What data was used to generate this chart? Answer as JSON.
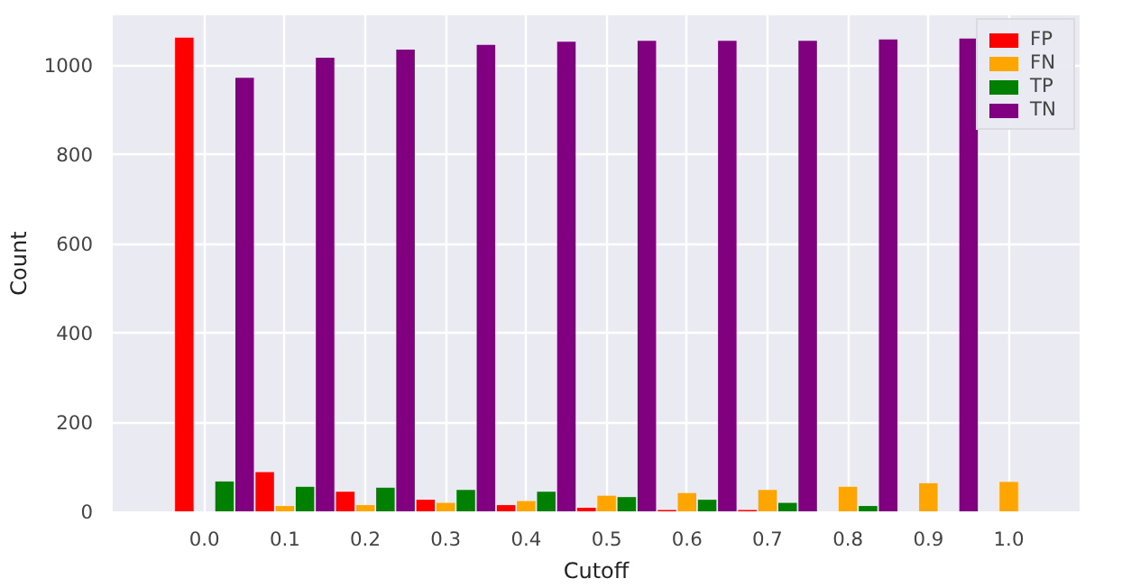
{
  "chart_data": {
    "type": "bar",
    "xlabel": "Cutoff",
    "ylabel": "Count",
    "xlim": [
      -0.114,
      1.088
    ],
    "ylim": [
      0,
      1112
    ],
    "xticks": [
      {
        "value": 0,
        "label": "0.0"
      },
      {
        "value": 0.1,
        "label": "0.1"
      },
      {
        "value": 0.2,
        "label": "0.2"
      },
      {
        "value": 0.3,
        "label": "0.3"
      },
      {
        "value": 0.4,
        "label": "0.4"
      },
      {
        "value": 0.5,
        "label": "0.5"
      },
      {
        "value": 0.6,
        "label": "0.6"
      },
      {
        "value": 0.7,
        "label": "0.7"
      },
      {
        "value": 0.8,
        "label": "0.8"
      },
      {
        "value": 0.9,
        "label": "0.9"
      },
      {
        "value": 1.0,
        "label": "1.0"
      }
    ],
    "yticks": [
      0,
      200,
      400,
      600,
      800,
      1000
    ],
    "series": [
      {
        "name": "FP",
        "color": "#ff0000",
        "x": [
          -0.025,
          0.075,
          0.175,
          0.275,
          0.375,
          0.475,
          0.575,
          0.675
        ],
        "values": [
          1062,
          88,
          44,
          26,
          14,
          8,
          3,
          3
        ]
      },
      {
        "name": "FN",
        "color": "#ffa500",
        "x": [
          0.1,
          0.2,
          0.3,
          0.4,
          0.5,
          0.6,
          0.7,
          0.8,
          0.9,
          1.0
        ],
        "values": [
          12,
          14,
          19,
          23,
          35,
          41,
          48,
          55,
          63,
          66
        ]
      },
      {
        "name": "TP",
        "color": "#008000",
        "x": [
          0.025,
          0.125,
          0.225,
          0.325,
          0.425,
          0.525,
          0.625,
          0.725,
          0.825
        ],
        "values": [
          67,
          55,
          53,
          48,
          44,
          32,
          26,
          19,
          12
        ]
      },
      {
        "name": "TN",
        "color": "#800080",
        "x": [
          0.05,
          0.15,
          0.25,
          0.35,
          0.45,
          0.55,
          0.65,
          0.75,
          0.85,
          0.95
        ],
        "values": [
          972,
          1017,
          1035,
          1046,
          1053,
          1055,
          1055,
          1055,
          1058,
          1060
        ]
      }
    ],
    "grid": true,
    "legend": "top right"
  }
}
